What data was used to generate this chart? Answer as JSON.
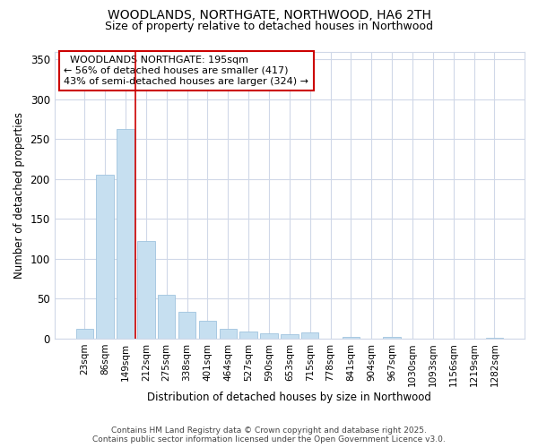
{
  "title": "WOODLANDS, NORTHGATE, NORTHWOOD, HA6 2TH",
  "subtitle": "Size of property relative to detached houses in Northwood",
  "xlabel": "Distribution of detached houses by size in Northwood",
  "ylabel": "Number of detached properties",
  "categories": [
    "23sqm",
    "86sqm",
    "149sqm",
    "212sqm",
    "275sqm",
    "338sqm",
    "401sqm",
    "464sqm",
    "527sqm",
    "590sqm",
    "653sqm",
    "715sqm",
    "778sqm",
    "841sqm",
    "904sqm",
    "967sqm",
    "1030sqm",
    "1093sqm",
    "1156sqm",
    "1219sqm",
    "1282sqm"
  ],
  "values": [
    12,
    205,
    263,
    122,
    55,
    33,
    22,
    12,
    9,
    6,
    5,
    8,
    0,
    2,
    0,
    2,
    0,
    0,
    0,
    0,
    1
  ],
  "bar_color": "#c6dff0",
  "bar_edge_color": "#a0c4de",
  "vline_x": 2.5,
  "vline_color": "#cc0000",
  "annotation_text": "  WOODLANDS NORTHGATE: 195sqm  \n← 56% of detached houses are smaller (417)\n43% of semi-detached houses are larger (324) →",
  "annotation_box_color": "#ffffff",
  "annotation_box_edge": "#cc0000",
  "ylim": [
    0,
    360
  ],
  "yticks": [
    0,
    50,
    100,
    150,
    200,
    250,
    300,
    350
  ],
  "footer1": "Contains HM Land Registry data © Crown copyright and database right 2025.",
  "footer2": "Contains public sector information licensed under the Open Government Licence v3.0.",
  "bg_color": "#ffffff",
  "plot_bg_color": "#ffffff",
  "grid_color": "#d0d8e8"
}
